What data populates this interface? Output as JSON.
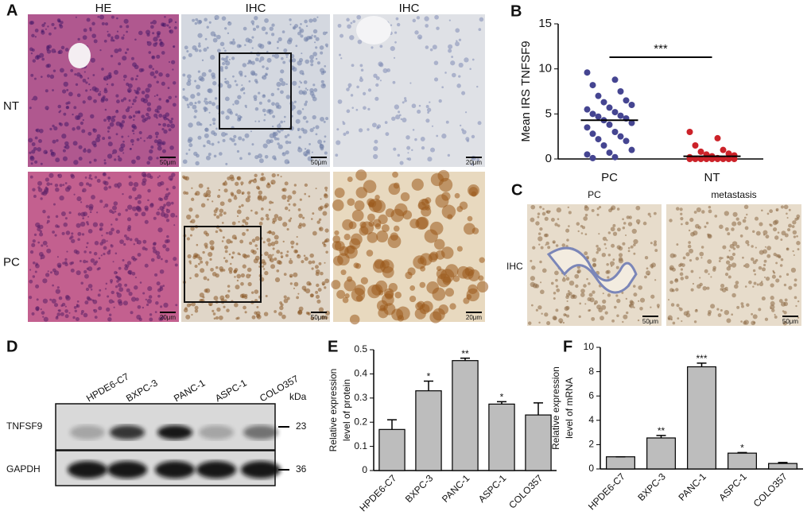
{
  "panel_a": {
    "letter": "A",
    "columns": [
      "HE",
      "IHC",
      "IHC"
    ],
    "rows": [
      "NT",
      "PC"
    ],
    "scale_bars": [
      [
        "50μm",
        "50μm",
        "20μm"
      ],
      [
        "20μm",
        "50μm",
        "20μm"
      ]
    ]
  },
  "panel_c": {
    "letter": "C",
    "columns": [
      "PC",
      "metastasis"
    ],
    "row": "IHC",
    "scale_bars": [
      "50μm",
      "50μm"
    ]
  },
  "panel_d": {
    "letter": "D",
    "lanes": [
      "HPDE6-C7",
      "BXPC-3",
      "PANC-1",
      "ASPC-1",
      "COLO357"
    ],
    "unit": "kDa",
    "bands": [
      {
        "name": "TNFSF9",
        "size": 23
      },
      {
        "name": "GAPDH",
        "size": 36
      }
    ]
  },
  "chart_data": [
    {
      "type": "scatter",
      "panel": "B",
      "ylabel": "Mean IRS TNFSF9",
      "categories": [
        "PC",
        "NT"
      ],
      "colors": [
        "#454591",
        "#cc2229"
      ],
      "values": [
        [
          9.6,
          8.8,
          8.2,
          7.5,
          7.0,
          6.5,
          6.3,
          6.0,
          5.7,
          5.5,
          5.2,
          5.0,
          4.8,
          4.7,
          4.5,
          4.3,
          4.0,
          3.8,
          3.5,
          3.0,
          2.8,
          2.5,
          2.2,
          2.0,
          1.5,
          1.0,
          0.7,
          0.5,
          0.2,
          0.1
        ],
        [
          3.0,
          2.3,
          1.5,
          1.0,
          0.8,
          0.6,
          0.5,
          0.4,
          0.3,
          0.2,
          0.1,
          0,
          0,
          0,
          0,
          0,
          0,
          0,
          0,
          0
        ]
      ],
      "means": [
        4.3,
        0.3
      ],
      "annotation": "***",
      "ylim": [
        0,
        15
      ],
      "yticks": [
        0,
        5,
        10,
        15
      ]
    },
    {
      "type": "bar",
      "panel": "E",
      "ylabel_lines": [
        "Relative expression",
        "level of protein"
      ],
      "categories": [
        "HPDE6-C7",
        "BXPC-3",
        "PANC-1",
        "ASPC-1",
        "COLO357"
      ],
      "values": [
        0.17,
        0.33,
        0.455,
        0.275,
        0.23
      ],
      "errors": [
        0.04,
        0.04,
        0.01,
        0.01,
        0.05
      ],
      "significance": [
        null,
        "*",
        "**",
        "*",
        null
      ],
      "color": "#bdbdbd",
      "ylim": [
        0,
        0.5
      ],
      "yticks": [
        0,
        0.1,
        0.2,
        0.3,
        0.4,
        0.5
      ]
    },
    {
      "type": "bar",
      "panel": "F",
      "ylabel_lines": [
        "Relative expression",
        "level of mRNA"
      ],
      "categories": [
        "HPDE6-C7",
        "BXPC-3",
        "PANC-1",
        "ASPC-1",
        "COLO357"
      ],
      "values": [
        1,
        2.55,
        8.4,
        1.3,
        0.45
      ],
      "errors": [
        0,
        0.2,
        0.3,
        0.05,
        0.08
      ],
      "significance": [
        null,
        "**",
        "***",
        "*",
        null
      ],
      "color": "#bdbdbd",
      "ylim": [
        0,
        10
      ],
      "yticks": [
        0,
        2,
        4,
        6,
        8,
        10
      ]
    }
  ]
}
